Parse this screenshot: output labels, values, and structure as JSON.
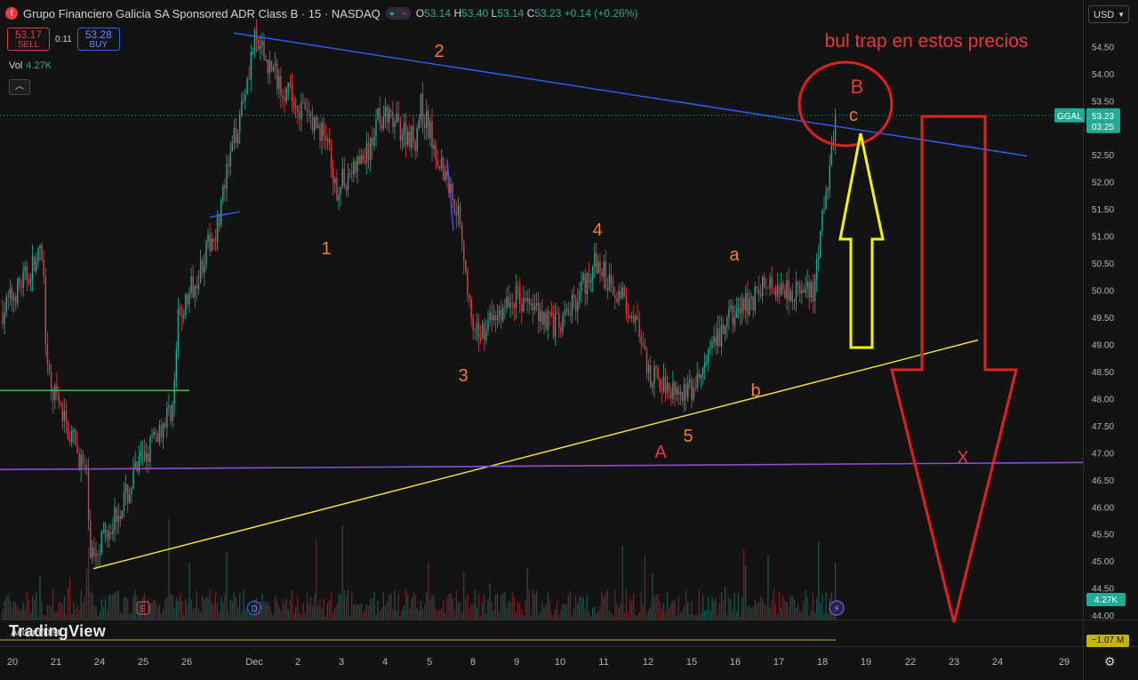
{
  "header": {
    "symbol_badge": "f",
    "title": "Grupo Financiero Galicia SA Sponsored ADR Class B · 15 · NASDAQ",
    "ohlc": {
      "o_label": "O",
      "o": "53.14",
      "h_label": "H",
      "h": "53.40",
      "l_label": "L",
      "l": "53.14",
      "c_label": "C",
      "c": "53.23",
      "change": "+0.14 (+0.26%)"
    }
  },
  "trade": {
    "sell_price": "53.17",
    "sell_label": "SELL",
    "spread": "0.11",
    "buy_price": "53.28",
    "buy_label": "BUY"
  },
  "volume": {
    "label": "Vol",
    "value": "4.27K"
  },
  "currency": "USD",
  "indicator": {
    "label": "Accum/Dist",
    "value": "−1.07 M"
  },
  "watermark": "TradingView",
  "chart_data": {
    "type": "candlestick",
    "symbol": "GGAL",
    "interval": "15",
    "exchange": "NASDAQ",
    "last_price": 53.23,
    "countdown": "03:25",
    "volume_last": "4.27K",
    "y_ticks": [
      "54.50",
      "54.00",
      "53.50",
      "53.00",
      "52.50",
      "52.00",
      "51.50",
      "51.00",
      "50.50",
      "50.00",
      "49.50",
      "49.00",
      "48.50",
      "48.00",
      "47.50",
      "47.00",
      "46.50",
      "46.00",
      "45.50",
      "45.00",
      "44.50",
      "44.00"
    ],
    "ylim": [
      43.92,
      54.9
    ],
    "x_ticks": [
      "20",
      "21",
      "24",
      "25",
      "26",
      "Dec",
      "2",
      "3",
      "4",
      "5",
      "8",
      "9",
      "10",
      "11",
      "12",
      "15",
      "16",
      "17",
      "18",
      "19",
      "22",
      "23",
      "24",
      "29"
    ],
    "price_path": [
      [
        "20",
        49.6
      ],
      [
        "20",
        50.7
      ],
      [
        "21",
        48.4
      ],
      [
        "21",
        46.6
      ],
      [
        "24",
        45.1
      ],
      [
        "24",
        46.3
      ],
      [
        "25",
        46.6
      ],
      [
        "25",
        47.9
      ],
      [
        "26",
        49.4
      ],
      [
        "26",
        51.2
      ],
      [
        "Dec",
        54.6
      ],
      [
        "2",
        53.6
      ],
      [
        "2",
        52.8
      ],
      [
        "3",
        51.8
      ],
      [
        "3",
        52.6
      ],
      [
        "4",
        53.3
      ],
      [
        "4",
        52.8
      ],
      [
        "5",
        53.4
      ],
      [
        "5",
        51.4
      ],
      [
        "8",
        49.1
      ],
      [
        "9",
        49.9
      ],
      [
        "10",
        49.3
      ],
      [
        "11",
        50.5
      ],
      [
        "11",
        49.6
      ],
      [
        "12",
        48.4
      ],
      [
        "15",
        48.1
      ],
      [
        "16",
        49.4
      ],
      [
        "16",
        50.1
      ],
      [
        "17",
        50.1
      ],
      [
        "18",
        49.9
      ],
      [
        "18",
        53.3
      ]
    ],
    "levels": [
      {
        "name": "blue-trendline",
        "color": "#2962ff",
        "from": [
          "Dec",
          54.75
        ],
        "to": [
          "22",
          52.45
        ]
      },
      {
        "name": "yellow-trendline",
        "color": "#ffeb3b",
        "from": [
          "24",
          44.85
        ],
        "to": [
          "23",
          49.05
        ]
      },
      {
        "name": "purple-line",
        "color": "#9c27b0",
        "from": [
          "20",
          46.7
        ],
        "to": [
          "29",
          46.8
        ]
      },
      {
        "name": "green-line",
        "color": "#4caf50",
        "from": [
          "20",
          48.15
        ],
        "to": [
          "26",
          48.15
        ]
      }
    ],
    "annotations": [
      {
        "text": "1",
        "color": "#f57c2b"
      },
      {
        "text": "2",
        "color": "#f57c2b"
      },
      {
        "text": "3",
        "color": "#f57c2b"
      },
      {
        "text": "4",
        "color": "#f57c2b"
      },
      {
        "text": "5",
        "color": "#f57c2b"
      },
      {
        "text": "a",
        "color": "#f57c2b"
      },
      {
        "text": "b",
        "color": "#f57c2b"
      },
      {
        "text": "c",
        "color": "#f57c2b"
      },
      {
        "text": "A",
        "color": "#e53935"
      },
      {
        "text": "B",
        "color": "#e53935"
      },
      {
        "text": "X",
        "color": "#e53935"
      },
      {
        "text": "bul trap en estos precios",
        "color": "#e53935"
      }
    ],
    "event_markers": [
      {
        "text": "E",
        "date": "25"
      },
      {
        "text": "D",
        "date": "Dec"
      }
    ]
  },
  "colors": {
    "up": "#22ab94",
    "down": "#e63946",
    "bg": "#131313"
  }
}
